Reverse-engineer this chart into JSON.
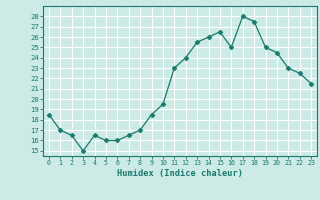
{
  "x": [
    0,
    1,
    2,
    3,
    4,
    5,
    6,
    7,
    8,
    9,
    10,
    11,
    12,
    13,
    14,
    15,
    16,
    17,
    18,
    19,
    20,
    21,
    22,
    23
  ],
  "y": [
    18.5,
    17.0,
    16.5,
    15.0,
    16.5,
    16.0,
    16.0,
    16.5,
    17.0,
    18.5,
    19.5,
    23.0,
    24.0,
    25.5,
    26.0,
    26.5,
    25.0,
    28.0,
    27.5,
    25.0,
    24.5,
    23.0,
    22.5,
    21.5
  ],
  "xlabel": "Humidex (Indice chaleur)",
  "xlim": [
    -0.5,
    23.5
  ],
  "ylim": [
    14.5,
    29.0
  ],
  "yticks": [
    15,
    16,
    17,
    18,
    19,
    20,
    21,
    22,
    23,
    24,
    25,
    26,
    27,
    28
  ],
  "xticks": [
    0,
    1,
    2,
    3,
    4,
    5,
    6,
    7,
    8,
    9,
    10,
    11,
    12,
    13,
    14,
    15,
    16,
    17,
    18,
    19,
    20,
    21,
    22,
    23
  ],
  "line_color": "#1a7a6e",
  "marker_color": "#1a7a6e",
  "bg_color": "#cceae6",
  "grid_color": "#ffffff",
  "tick_label_color": "#1a7a6e",
  "xlabel_color": "#1a7a6e",
  "axis_color": "#1a7a6e"
}
